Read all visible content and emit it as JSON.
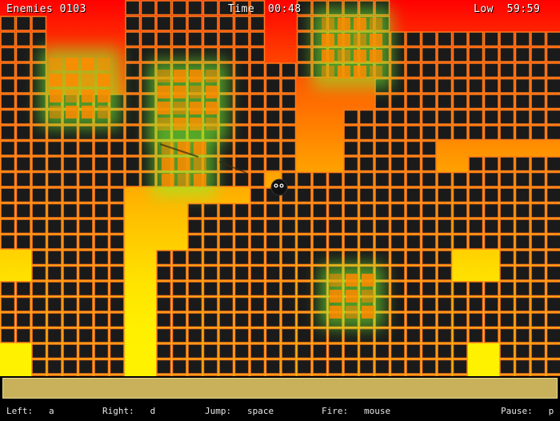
{
  "hud": {
    "enemies_label": "Enemies",
    "enemies_value": "0103",
    "time_label": "Time",
    "time_value": "00:48",
    "low_label": "Low",
    "low_value": "59:59"
  },
  "controls": [
    {
      "label": "Left:",
      "key": "a"
    },
    {
      "label": "Right:",
      "key": "d"
    },
    {
      "label": "Jump:",
      "key": "space"
    },
    {
      "label": "Fire:",
      "key": "mouse"
    },
    {
      "label": "Pause:",
      "key": "p"
    }
  ],
  "colors": {
    "block_fill": "#1a1a1a",
    "block_stroke": "#ff7a1a",
    "enemy_fill": "#ff8a00",
    "enemy_glow": "#7dff30",
    "bar_fill": "#c9b05a"
  }
}
